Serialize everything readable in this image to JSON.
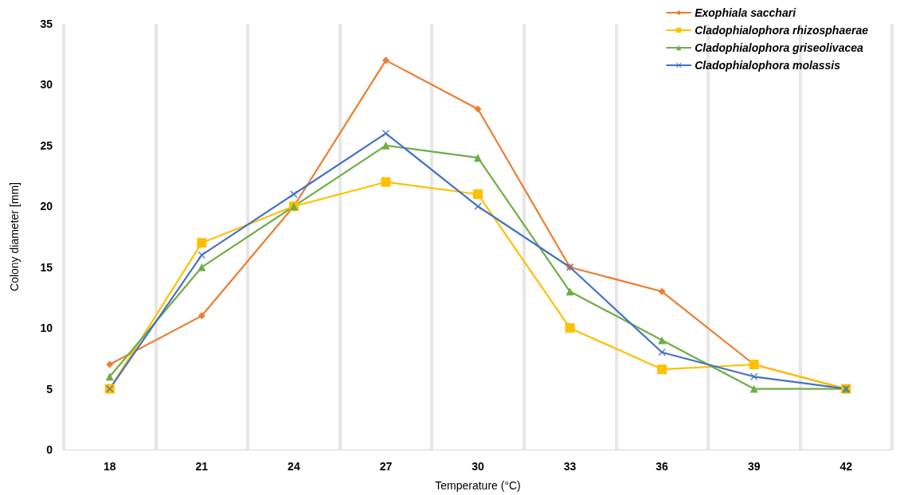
{
  "chart_data": {
    "type": "line",
    "xlabel": "Temperature (°C)",
    "ylabel": "Colony diameter [mm]",
    "categories": [
      "18",
      "21",
      "24",
      "27",
      "30",
      "33",
      "36",
      "39",
      "42"
    ],
    "ylim": [
      0,
      35
    ],
    "yticks": [
      0,
      5,
      10,
      15,
      20,
      25,
      30,
      35
    ],
    "grid": "x",
    "legend": "top right",
    "series": [
      {
        "name": "Exophiala sacchari",
        "color": "#ed7d31",
        "marker": "diamond",
        "values": [
          7,
          11,
          20,
          32,
          28,
          15,
          13,
          7,
          5
        ]
      },
      {
        "name": "Cladophialophora rhizosphaerae",
        "color": "#ffc000",
        "marker": "square",
        "values": [
          5,
          17,
          20,
          22,
          21,
          10,
          6.6,
          7,
          5
        ]
      },
      {
        "name": "Cladophialophora griseolivacea",
        "color": "#70ad47",
        "marker": "triangle",
        "values": [
          6,
          15,
          20,
          25,
          24,
          13,
          9,
          5,
          5
        ]
      },
      {
        "name": "Cladophialophora molassis",
        "color": "#4472c4",
        "marker": "cross",
        "values": [
          5,
          16,
          21,
          26,
          20,
          15,
          8,
          6,
          5
        ]
      }
    ]
  }
}
